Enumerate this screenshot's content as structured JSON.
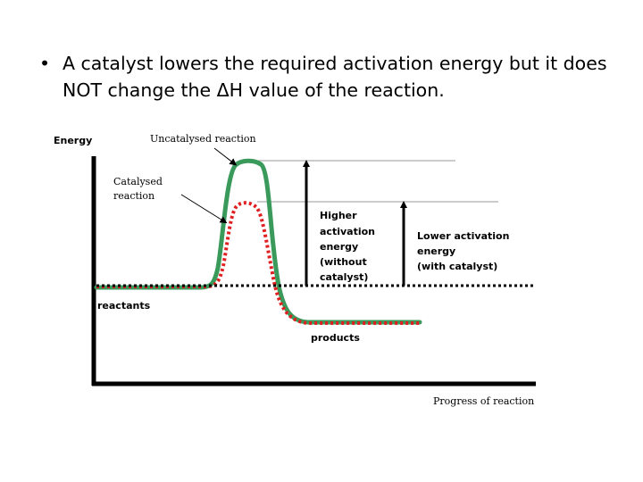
{
  "slide": {
    "bullet_marker": "•",
    "bullet_text": "A catalyst lowers the required activation energy but it does NOT change the ΔH value of the reaction."
  },
  "diagram": {
    "y_axis_label": "Energy",
    "x_axis_label": "Progress of reaction",
    "uncatalysed_label": "Uncatalysed reaction",
    "catalysed_label": [
      "Catalysed",
      "reaction"
    ],
    "reactants_label": "reactants",
    "products_label": "products",
    "higher_activation_label": [
      "Higher",
      "activation",
      "energy",
      "(without",
      "catalyst)"
    ],
    "lower_activation_label": [
      "Lower activation",
      "energy",
      "(with catalyst)"
    ],
    "colors": {
      "uncatalysed_curve": "#3a9a5b",
      "catalysed_curve": "#e02020",
      "axes": "#000000",
      "reference_lines": "#999999"
    }
  }
}
